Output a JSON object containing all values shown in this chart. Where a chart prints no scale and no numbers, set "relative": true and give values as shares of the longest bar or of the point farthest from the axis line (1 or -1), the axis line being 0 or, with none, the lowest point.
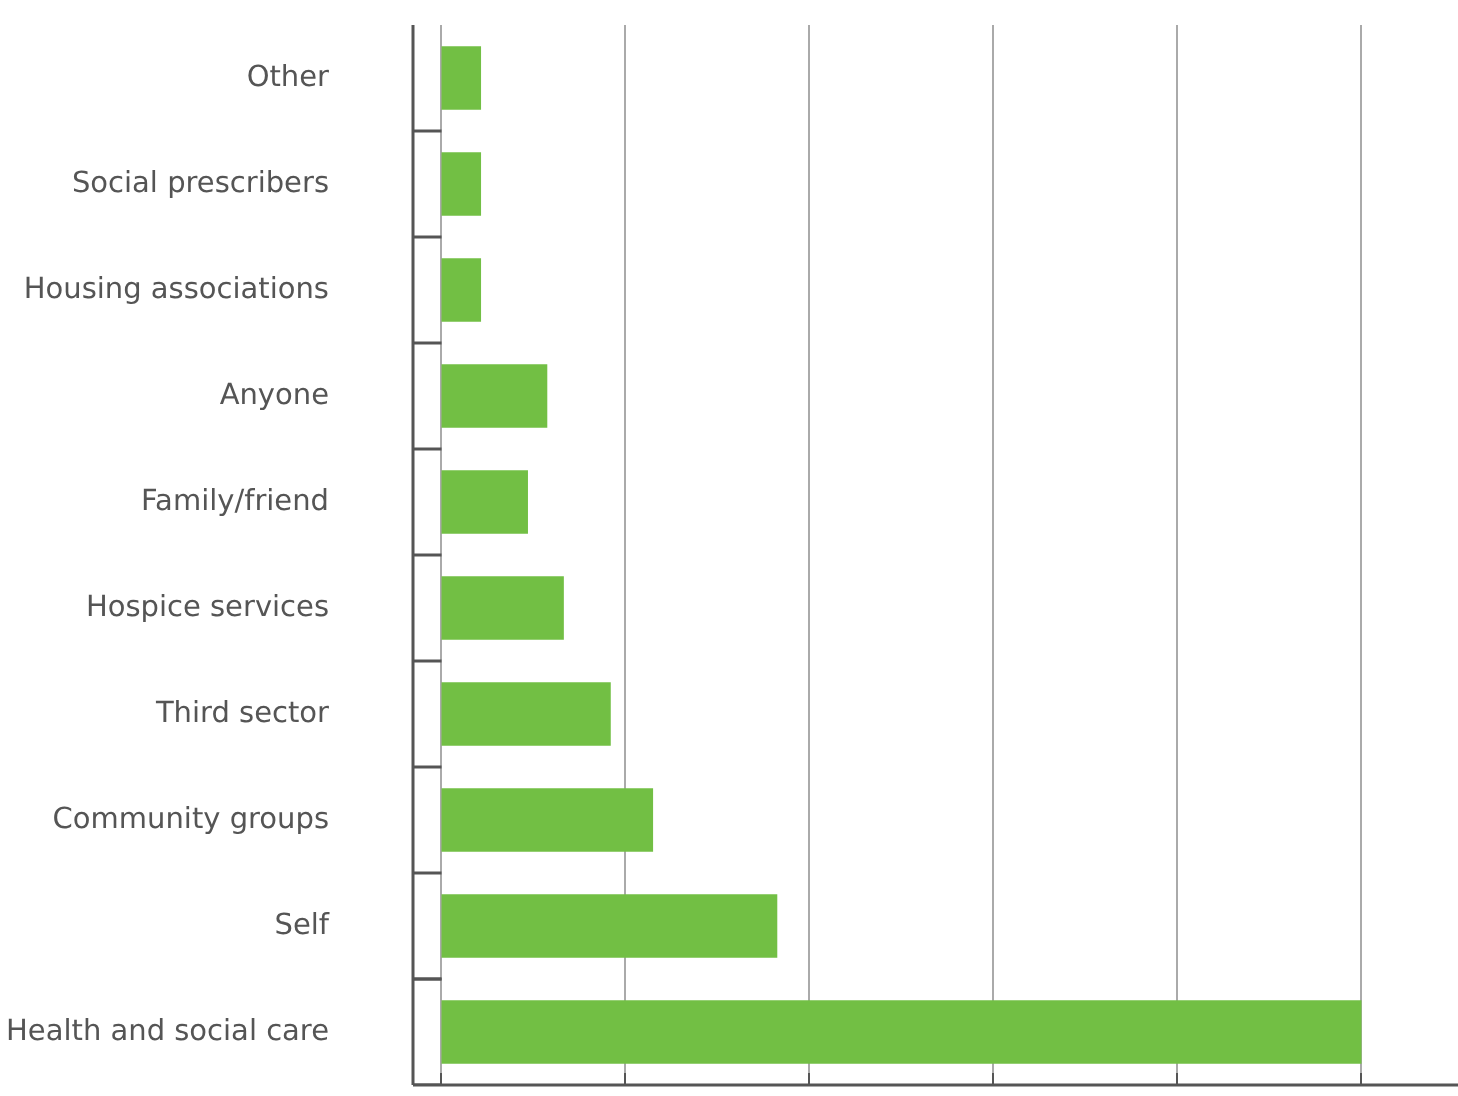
{
  "chart_data": {
    "type": "bar",
    "orientation": "horizontal",
    "relative": true,
    "grid": "x",
    "color": "#72bf44",
    "categories": [
      "Other",
      "Social prescribers",
      "Housing associations",
      "Anyone",
      "Family/friend",
      "Hospice services",
      "Third sector",
      "Community groups",
      "Self",
      "Health and social care"
    ],
    "values": [
      0.043,
      0.043,
      0.043,
      0.115,
      0.094,
      0.133,
      0.184,
      0.23,
      0.365,
      1
    ]
  }
}
